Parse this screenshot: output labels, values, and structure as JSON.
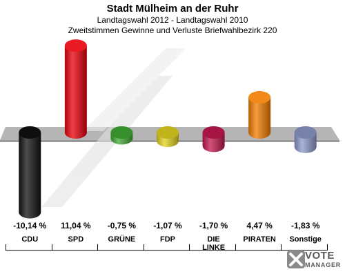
{
  "titles": {
    "title": "Stadt Mülheim an der Ruhr",
    "subtitle": "Landtagswahl 2012 - Landtagswahl 2010",
    "subtitle2": "Zweitstimmen Gewinne und Verluste Briefwahlbezirk 220"
  },
  "brand": {
    "line1": "VOTE",
    "line2": "MANAGER"
  },
  "chart_data": {
    "type": "bar",
    "title": "Stadt Mülheim an der Ruhr",
    "subtitle": "Landtagswahl 2012 - Landtagswahl 2010",
    "categories": [
      "CDU",
      "SPD",
      "GRÜNE",
      "FDP",
      "DIE LINKE",
      "PIRATEN",
      "Sonstige"
    ],
    "values": [
      -10.14,
      11.04,
      -0.75,
      -1.07,
      -1.7,
      4.47,
      -1.83
    ],
    "value_labels": [
      "-10,14 %",
      "11,04 %",
      "-0,75 %",
      "-1,07 %",
      "-1,70 %",
      "4,47 %",
      "-1,83 %"
    ],
    "colors": [
      "#111111",
      "#e8000b",
      "#3fa832",
      "#e3d31f",
      "#c2184f",
      "#f07d00",
      "#8c99c9"
    ],
    "xlabel": "",
    "ylabel": "",
    "grid": false,
    "legend": "none"
  }
}
